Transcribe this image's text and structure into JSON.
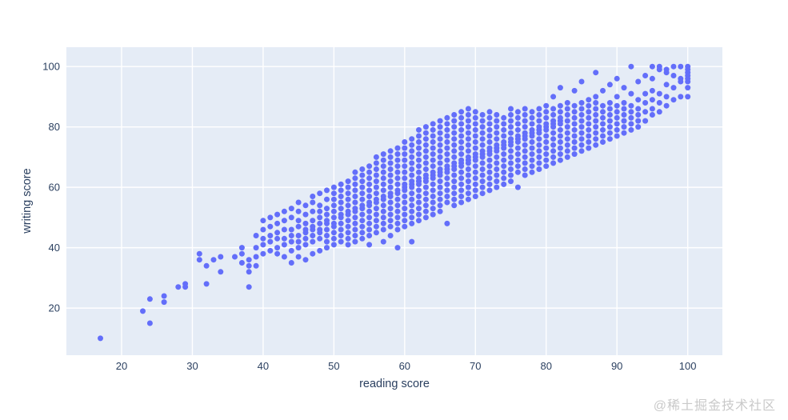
{
  "page": {
    "watermark": "@稀土掘金技术社区",
    "background_color": "#ffffff"
  },
  "chart_style": {
    "paper_bgcolor": "#ffffff",
    "plot_bgcolor": "#e5ecf6",
    "grid_color": "#ffffff",
    "axis_text_color": "#2a3f5f",
    "watermark_color": "#c9c9c9"
  },
  "chart_data": {
    "type": "scatter",
    "title": "",
    "xlabel": "reading score",
    "ylabel": "writing score",
    "xlim": [
      12.2,
      104.9
    ],
    "ylim": [
      4.4,
      106.4
    ],
    "x_ticks": [
      20,
      30,
      40,
      50,
      60,
      70,
      80,
      90,
      100
    ],
    "y_ticks": [
      20,
      40,
      60,
      80,
      100
    ],
    "grid": true,
    "legend": false,
    "marker": {
      "color": "#636efa",
      "size": 7
    },
    "points": {
      "encoding": "columns (x = reading score, ys = writing scores observed at that x)",
      "columns": [
        {
          "x": 17,
          "ys": [
            10
          ]
        },
        {
          "x": 23,
          "ys": [
            19
          ]
        },
        {
          "x": 24,
          "ys": [
            15,
            23
          ]
        },
        {
          "x": 26,
          "ys": [
            22,
            24
          ]
        },
        {
          "x": 28,
          "ys": [
            27
          ]
        },
        {
          "x": 29,
          "ys": [
            27,
            28
          ]
        },
        {
          "x": 31,
          "ys": [
            36,
            38
          ]
        },
        {
          "x": 32,
          "ys": [
            28,
            34
          ]
        },
        {
          "x": 33,
          "ys": [
            36
          ]
        },
        {
          "x": 34,
          "ys": [
            32,
            37
          ]
        },
        {
          "x": 36,
          "ys": [
            37
          ]
        },
        {
          "x": 37,
          "ys": [
            35,
            38,
            40
          ]
        },
        {
          "x": 38,
          "ys": [
            27,
            32,
            34,
            36
          ]
        },
        {
          "x": 39,
          "ys": [
            34,
            37,
            40,
            44
          ]
        },
        {
          "x": 40,
          "ys": [
            38,
            41,
            43,
            46,
            49
          ]
        },
        {
          "x": 41,
          "ys": [
            39,
            42,
            44,
            47,
            50
          ]
        },
        {
          "x": 42,
          "ys": [
            38,
            40,
            43,
            45,
            48,
            51
          ]
        },
        {
          "x": 43,
          "ys": [
            37,
            41,
            43,
            46,
            49,
            52
          ]
        },
        {
          "x": 44,
          "ys": [
            35,
            39,
            42,
            44,
            46,
            50,
            53
          ]
        },
        {
          "x": 45,
          "ys": [
            37,
            40,
            42,
            44,
            47,
            49,
            52,
            55
          ]
        },
        {
          "x": 46,
          "ys": [
            36,
            41,
            43,
            45,
            46,
            48,
            51,
            54
          ]
        },
        {
          "x": 47,
          "ys": [
            38,
            42,
            44,
            46,
            47,
            49,
            52,
            55,
            57
          ]
        },
        {
          "x": 48,
          "ys": [
            39,
            43,
            45,
            46,
            48,
            50,
            52,
            54,
            58
          ]
        },
        {
          "x": 49,
          "ys": [
            40,
            42,
            44,
            46,
            48,
            49,
            51,
            53,
            56,
            59
          ]
        },
        {
          "x": 50,
          "ys": [
            41,
            43,
            45,
            47,
            48,
            50,
            52,
            54,
            56,
            58,
            60
          ]
        },
        {
          "x": 51,
          "ys": [
            42,
            44,
            46,
            48,
            50,
            51,
            53,
            55,
            57,
            59,
            61
          ]
        },
        {
          "x": 52,
          "ys": [
            41,
            43,
            45,
            47,
            49,
            51,
            52,
            54,
            56,
            58,
            60,
            62
          ]
        },
        {
          "x": 53,
          "ys": [
            42,
            44,
            46,
            48,
            50,
            52,
            53,
            55,
            57,
            59,
            61,
            63,
            65
          ]
        },
        {
          "x": 54,
          "ys": [
            43,
            45,
            47,
            49,
            51,
            53,
            54,
            56,
            58,
            60,
            62,
            64,
            66
          ]
        },
        {
          "x": 55,
          "ys": [
            41,
            44,
            46,
            48,
            50,
            52,
            54,
            55,
            57,
            59,
            61,
            63,
            65,
            67
          ]
        },
        {
          "x": 56,
          "ys": [
            45,
            47,
            49,
            51,
            53,
            55,
            56,
            58,
            60,
            62,
            64,
            66,
            68,
            70
          ]
        },
        {
          "x": 57,
          "ys": [
            42,
            46,
            48,
            50,
            52,
            54,
            56,
            57,
            59,
            61,
            63,
            65,
            67,
            69,
            71
          ]
        },
        {
          "x": 58,
          "ys": [
            44,
            47,
            49,
            51,
            53,
            55,
            57,
            58,
            60,
            62,
            64,
            66,
            68,
            70,
            72
          ]
        },
        {
          "x": 59,
          "ys": [
            40,
            46,
            48,
            50,
            52,
            54,
            56,
            58,
            59,
            61,
            63,
            65,
            67,
            69,
            71,
            73
          ]
        },
        {
          "x": 60,
          "ys": [
            47,
            49,
            51,
            53,
            55,
            57,
            59,
            60,
            61,
            63,
            65,
            67,
            69,
            71,
            73,
            75
          ]
        },
        {
          "x": 61,
          "ys": [
            42,
            48,
            50,
            52,
            54,
            56,
            58,
            60,
            61,
            62,
            64,
            66,
            68,
            70,
            72,
            74,
            76
          ]
        },
        {
          "x": 62,
          "ys": [
            49,
            51,
            53,
            55,
            57,
            59,
            61,
            62,
            63,
            65,
            67,
            69,
            71,
            73,
            75,
            77,
            79
          ]
        },
        {
          "x": 63,
          "ys": [
            50,
            52,
            54,
            56,
            58,
            60,
            62,
            63,
            64,
            66,
            68,
            70,
            72,
            74,
            76,
            78,
            80
          ]
        },
        {
          "x": 64,
          "ys": [
            51,
            53,
            55,
            57,
            59,
            61,
            63,
            64,
            65,
            67,
            69,
            71,
            73,
            75,
            77,
            79,
            81
          ]
        },
        {
          "x": 65,
          "ys": [
            52,
            54,
            56,
            58,
            60,
            62,
            64,
            65,
            66,
            68,
            70,
            72,
            74,
            76,
            78,
            80,
            82
          ]
        },
        {
          "x": 66,
          "ys": [
            48,
            55,
            57,
            59,
            61,
            63,
            65,
            66,
            67,
            69,
            71,
            73,
            75,
            77,
            79,
            81,
            83
          ]
        },
        {
          "x": 67,
          "ys": [
            54,
            56,
            58,
            60,
            62,
            64,
            66,
            67,
            68,
            70,
            72,
            74,
            76,
            78,
            80,
            82,
            84
          ]
        },
        {
          "x": 68,
          "ys": [
            55,
            57,
            59,
            61,
            63,
            65,
            67,
            68,
            69,
            71,
            73,
            75,
            77,
            79,
            81,
            83,
            85
          ]
        },
        {
          "x": 69,
          "ys": [
            56,
            58,
            60,
            62,
            64,
            66,
            68,
            69,
            70,
            72,
            74,
            76,
            78,
            80,
            82,
            84,
            86
          ]
        },
        {
          "x": 70,
          "ys": [
            57,
            59,
            61,
            63,
            65,
            67,
            69,
            70,
            71,
            73,
            75,
            77,
            79,
            81,
            83,
            85
          ]
        },
        {
          "x": 71,
          "ys": [
            58,
            60,
            62,
            64,
            66,
            68,
            70,
            71,
            72,
            74,
            76,
            78,
            80,
            82,
            84
          ]
        },
        {
          "x": 72,
          "ys": [
            59,
            61,
            63,
            65,
            67,
            69,
            71,
            72,
            73,
            75,
            77,
            79,
            81,
            83,
            85
          ]
        },
        {
          "x": 73,
          "ys": [
            60,
            62,
            64,
            66,
            68,
            70,
            72,
            73,
            74,
            76,
            78,
            80,
            82,
            84
          ]
        },
        {
          "x": 74,
          "ys": [
            61,
            63,
            65,
            67,
            69,
            71,
            73,
            74,
            75,
            77,
            79,
            81,
            83
          ]
        },
        {
          "x": 75,
          "ys": [
            62,
            64,
            66,
            68,
            70,
            72,
            74,
            75,
            76,
            78,
            80,
            82,
            84,
            86
          ]
        },
        {
          "x": 76,
          "ys": [
            60,
            65,
            67,
            69,
            71,
            73,
            75,
            76,
            77,
            79,
            81,
            83,
            85
          ]
        },
        {
          "x": 77,
          "ys": [
            64,
            66,
            68,
            70,
            72,
            74,
            76,
            77,
            78,
            80,
            82,
            84,
            86
          ]
        },
        {
          "x": 78,
          "ys": [
            65,
            67,
            69,
            71,
            73,
            75,
            77,
            78,
            79,
            81,
            83,
            85
          ]
        },
        {
          "x": 79,
          "ys": [
            66,
            68,
            70,
            72,
            74,
            76,
            78,
            79,
            80,
            82,
            84,
            86
          ]
        },
        {
          "x": 80,
          "ys": [
            67,
            69,
            71,
            73,
            75,
            77,
            79,
            80,
            81,
            83,
            85,
            87
          ]
        },
        {
          "x": 81,
          "ys": [
            68,
            70,
            72,
            74,
            76,
            78,
            80,
            81,
            82,
            84,
            86,
            90
          ]
        },
        {
          "x": 82,
          "ys": [
            69,
            71,
            73,
            75,
            77,
            79,
            81,
            82,
            83,
            85,
            87,
            93
          ]
        },
        {
          "x": 83,
          "ys": [
            70,
            72,
            74,
            76,
            78,
            80,
            82,
            84,
            86,
            88
          ]
        },
        {
          "x": 84,
          "ys": [
            71,
            73,
            75,
            77,
            79,
            81,
            83,
            85,
            87,
            92
          ]
        },
        {
          "x": 85,
          "ys": [
            72,
            74,
            76,
            78,
            80,
            82,
            84,
            86,
            88,
            95
          ]
        },
        {
          "x": 86,
          "ys": [
            73,
            75,
            77,
            79,
            81,
            83,
            85,
            87,
            89
          ]
        },
        {
          "x": 87,
          "ys": [
            74,
            76,
            78,
            80,
            82,
            84,
            86,
            88,
            90,
            98
          ]
        },
        {
          "x": 88,
          "ys": [
            75,
            77,
            79,
            81,
            83,
            85,
            87,
            92
          ]
        },
        {
          "x": 89,
          "ys": [
            76,
            78,
            80,
            82,
            84,
            86,
            88,
            94
          ]
        },
        {
          "x": 90,
          "ys": [
            77,
            79,
            81,
            83,
            85,
            87,
            90,
            96
          ]
        },
        {
          "x": 91,
          "ys": [
            78,
            80,
            82,
            84,
            86,
            88,
            93
          ]
        },
        {
          "x": 92,
          "ys": [
            79,
            81,
            83,
            85,
            87,
            91,
            100
          ]
        },
        {
          "x": 93,
          "ys": [
            80,
            82,
            84,
            86,
            89,
            95
          ]
        },
        {
          "x": 94,
          "ys": [
            82,
            85,
            88,
            91,
            97
          ]
        },
        {
          "x": 95,
          "ys": [
            84,
            86,
            89,
            92,
            96,
            100
          ]
        },
        {
          "x": 96,
          "ys": [
            85,
            88,
            91,
            99,
            100
          ]
        },
        {
          "x": 97,
          "ys": [
            87,
            90,
            94,
            98,
            99
          ]
        },
        {
          "x": 98,
          "ys": [
            89,
            93,
            97,
            100
          ]
        },
        {
          "x": 99,
          "ys": [
            90,
            95,
            96,
            100
          ]
        },
        {
          "x": 100,
          "ys": [
            90,
            93,
            95,
            96,
            97,
            98,
            99,
            100
          ]
        }
      ]
    }
  }
}
